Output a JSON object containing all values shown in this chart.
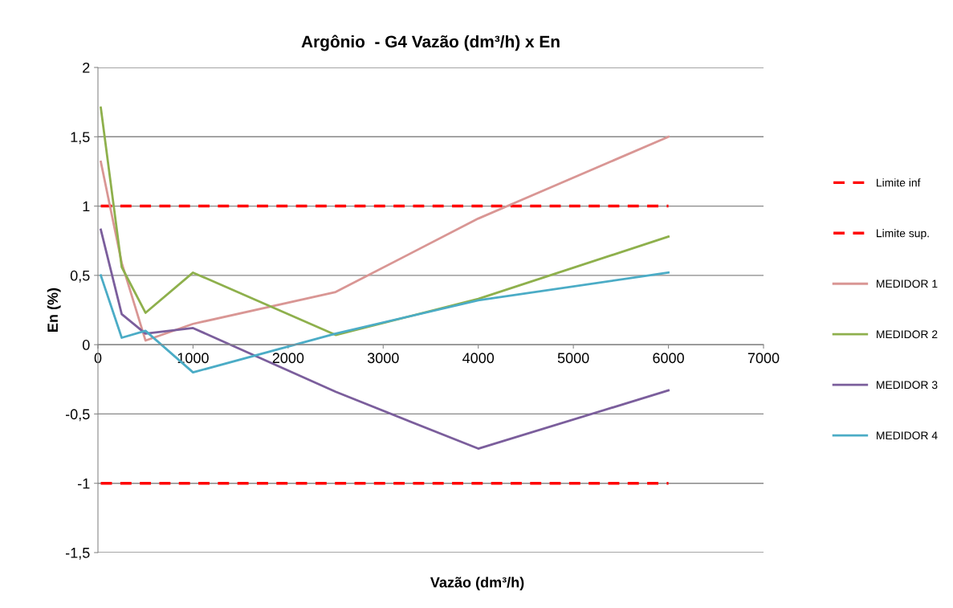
{
  "chart_data": {
    "type": "line",
    "title": "Argônio  - G4 Vazão (dm³/h) x En",
    "xlabel": "Vazão (dm³/h)",
    "ylabel": "En (%)",
    "x": [
      30,
      250,
      500,
      1000,
      2500,
      4000,
      6000
    ],
    "series": [
      {
        "name": "Limite inf",
        "color": "#ff0000",
        "line_style": "dashed",
        "values": [
          -1,
          -1,
          -1,
          -1,
          -1,
          -1,
          -1
        ]
      },
      {
        "name": "Limite sup.",
        "color": "#ff0000",
        "line_style": "dashed",
        "values": [
          1,
          1,
          1,
          1,
          1,
          1,
          1
        ]
      },
      {
        "name": "MEDIDOR 1",
        "color": "#d99694",
        "values": [
          1.32,
          0.59,
          0.03,
          0.15,
          0.38,
          0.91,
          1.5
        ]
      },
      {
        "name": "MEDIDOR 2",
        "color": "#8eb04c",
        "values": [
          1.71,
          0.56,
          0.23,
          0.52,
          0.07,
          0.33,
          0.78
        ]
      },
      {
        "name": "MEDIDOR 3",
        "color": "#7b5e9c",
        "values": [
          0.83,
          0.22,
          0.08,
          0.12,
          -0.34,
          -0.75,
          -0.33
        ]
      },
      {
        "name": "MEDIDOR 4",
        "color": "#4bacc6",
        "values": [
          0.5,
          0.05,
          0.1,
          -0.2,
          0.08,
          0.32,
          0.52
        ]
      }
    ],
    "xlim": [
      0,
      7000
    ],
    "xticks": [
      0,
      1000,
      2000,
      3000,
      4000,
      5000,
      6000,
      7000
    ],
    "ylim": [
      -1.5,
      2
    ],
    "yticks": [
      {
        "value": -1.5,
        "label": "-1,5"
      },
      {
        "value": -1,
        "label": "-1"
      },
      {
        "value": -0.5,
        "label": "-0,5"
      },
      0,
      {
        "value": 0.5,
        "label": "0,5"
      },
      1,
      {
        "value": 1.5,
        "label": "1,5"
      },
      2
    ],
    "grid": "y",
    "legend": "right",
    "marker": "none",
    "line_style": "solid"
  }
}
